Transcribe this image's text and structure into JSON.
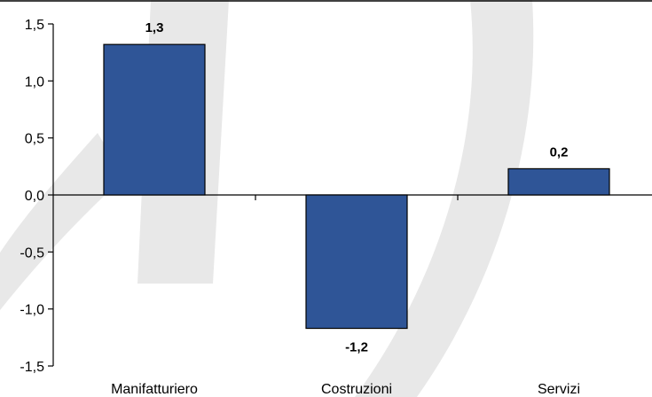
{
  "chart_data": {
    "type": "bar",
    "title": "",
    "xlabel": "",
    "ylabel": "",
    "categories": [
      "Manifatturiero",
      "Costruzioni",
      "Servizi"
    ],
    "values": [
      1.32,
      -1.17,
      0.23
    ],
    "data_labels": [
      "1,3",
      "-1,2",
      "0,2"
    ],
    "ylim": [
      -1.5,
      1.5
    ],
    "yticks": [
      1.5,
      1.0,
      0.5,
      0.0,
      -0.5,
      -1.0,
      -1.5
    ],
    "ytick_labels": [
      "1,5",
      "1,0",
      "0,5",
      "0,0",
      "-0,5",
      "-1,0",
      "-1,5"
    ],
    "grid": false,
    "bar_color": "#2f5597",
    "bar_edge_color": "#000000",
    "watermark_color": "#e6e6e6"
  }
}
